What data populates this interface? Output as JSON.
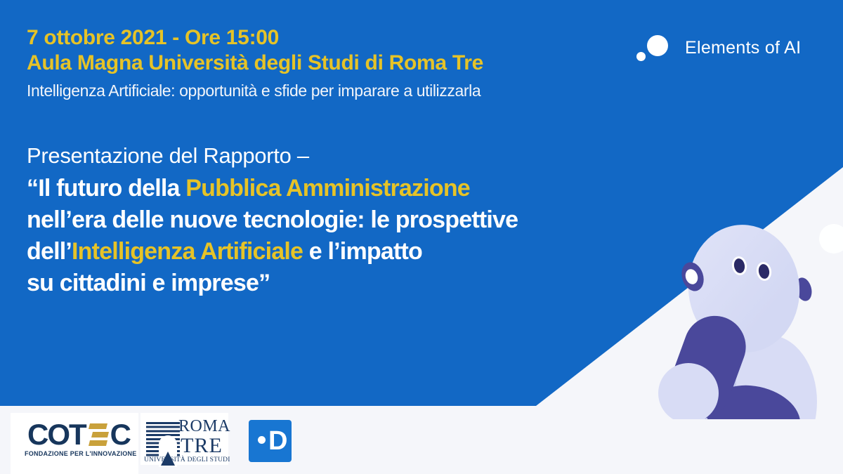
{
  "colors": {
    "background_blue": "#1268c5",
    "accent_yellow": "#e6c327",
    "light_panel": "#f5f6fa",
    "robot_lavender": "#d8dcf5",
    "robot_indigo": "#4a489b",
    "logo_navy": "#17365c",
    "logo_gold": "#c9a13b",
    "d_logo_blue": "#1876d2"
  },
  "header": {
    "date_line": "7 ottobre 2021 - Ore 15:00",
    "venue_line": "Aula Magna Università degli Studi di Roma Tre",
    "subtitle": "Intelligenza Artificiale: opportunità e sfide per imparare a utilizzarla"
  },
  "brand": {
    "name": "Elements of AI"
  },
  "title": {
    "intro": "Presentazione del Rapporto –",
    "l1a": "“Il futuro della ",
    "l1b": "Pubblica Amministrazione",
    "l2": "nell’era delle nuove tecnologie: le prospettive",
    "l3a": "dell’",
    "l3b": "Intelligenza Artificiale",
    "l3c": " e l’impatto",
    "l4": "su cittadini e imprese”"
  },
  "footer": {
    "cotec": {
      "text_left": "COT",
      "text_right": "C",
      "tagline": "FONDAZIONE PER L'INNOVAZIONE"
    },
    "romatre": {
      "line1": "ROMA",
      "line2": "TRE",
      "tagline": "UNIVERSITÀ DEGLI STUDI"
    },
    "d_logo": {
      "letter": "D"
    }
  }
}
